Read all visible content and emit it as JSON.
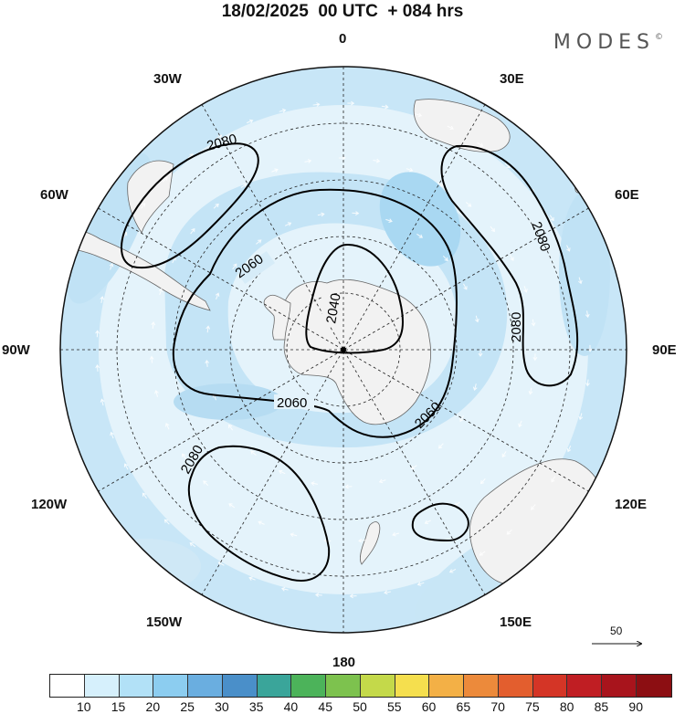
{
  "title": "18/02/2025  00 UTC  + 084 hrs",
  "brand": {
    "name": "MODES",
    "mark": "©"
  },
  "meridian_labels": {
    "m0": "0",
    "m30e": "30E",
    "m60e": "60E",
    "m90e": "90E",
    "m120e": "120E",
    "m150e": "150E",
    "m180": "180",
    "m150w": "150W",
    "m120w": "120W",
    "m90w": "90W",
    "m60w": "60W",
    "m30w": "30W"
  },
  "contour_labels": {
    "c2040": "2040",
    "c2060a": "2060",
    "c2060b": "2060",
    "c2060c": "2060",
    "c2080a": "2080",
    "c2080b": "2080",
    "c2080c": "2080",
    "c2080d": "2080"
  },
  "vector_reference": {
    "value": "50"
  },
  "colorbar": {
    "colors": [
      "#ffffff",
      "#d6f0fc",
      "#b2e1f7",
      "#8ccdf0",
      "#6aaee0",
      "#4a8fc9",
      "#3aa59a",
      "#4cb35a",
      "#7dc24e",
      "#c4d94a",
      "#f5df4e",
      "#f3b046",
      "#ec8a3b",
      "#e35e2e",
      "#d43526",
      "#c01e23",
      "#a8141c",
      "#8c0e12"
    ],
    "ticks": [
      "10",
      "15",
      "20",
      "25",
      "30",
      "35",
      "40",
      "45",
      "50",
      "55",
      "60",
      "65",
      "70",
      "75",
      "80",
      "85",
      "90"
    ]
  },
  "map": {
    "projection": "south polar stereographic",
    "ocean_color": "#c9e6f7",
    "land_color": "#f2f2f2",
    "contour_color": "#000000"
  }
}
